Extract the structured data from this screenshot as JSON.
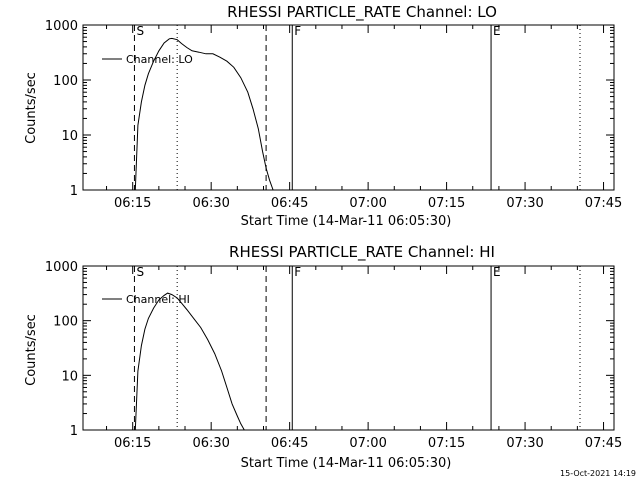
{
  "footer": {
    "timestamp": "15-Oct-2021 14:19"
  },
  "chart_data": [
    {
      "type": "line",
      "title": "RHESSI PARTICLE_RATE Channel: LO",
      "xlabel": "Start Time (14-Mar-11 06:05:30)",
      "ylabel": "Counts/sec",
      "yscale": "log",
      "xlim": [
        "06:05:30",
        "07:47:00"
      ],
      "ylim": [
        1,
        1000
      ],
      "x_ticks": [
        "06:15",
        "06:30",
        "06:45",
        "07:00",
        "07:15",
        "07:30",
        "07:45"
      ],
      "y_ticks": [
        "1",
        "10",
        "100",
        "1000"
      ],
      "grid": false,
      "legend": {
        "placement": "top-left",
        "entries": [
          "Channel: LO"
        ]
      },
      "markers": [
        {
          "label": "S",
          "time": "06:15:20",
          "style": "dashed"
        },
        {
          "label": "",
          "time": "06:23:30",
          "style": "dotted"
        },
        {
          "label": "",
          "time": "06:40:30",
          "style": "dashed"
        },
        {
          "label": "F",
          "time": "06:45:30",
          "style": "solid"
        },
        {
          "label": "E",
          "time": "07:23:30",
          "style": "solid"
        },
        {
          "label": "",
          "time": "07:40:30",
          "style": "dotted"
        }
      ],
      "series": [
        {
          "x": [
            "06:15:30",
            "06:16:00",
            "06:16:40",
            "06:17:20",
            "06:18:00",
            "06:19:00",
            "06:20:00",
            "06:21:00",
            "06:22:00",
            "06:22:30",
            "06:23:30",
            "06:24:20",
            "06:25:20",
            "06:26:20",
            "06:27:40",
            "06:29:00",
            "06:30:20",
            "06:31:40",
            "06:33:00",
            "06:34:20",
            "06:35:40",
            "06:37:00",
            "06:38:00",
            "06:39:00",
            "06:39:50",
            "06:40:30",
            "06:41:10",
            "06:41:50"
          ],
          "values": [
            1,
            15,
            40,
            80,
            130,
            220,
            340,
            470,
            560,
            570,
            540,
            460,
            390,
            340,
            320,
            300,
            300,
            260,
            220,
            170,
            110,
            60,
            30,
            13,
            5,
            2.5,
            1.5,
            1
          ]
        }
      ]
    },
    {
      "type": "line",
      "title": "RHESSI PARTICLE_RATE Channel: HI",
      "xlabel": "Start Time (14-Mar-11 06:05:30)",
      "ylabel": "Counts/sec",
      "yscale": "log",
      "xlim": [
        "06:05:30",
        "07:47:00"
      ],
      "ylim": [
        1,
        1000
      ],
      "x_ticks": [
        "06:15",
        "06:30",
        "06:45",
        "07:00",
        "07:15",
        "07:30",
        "07:45"
      ],
      "y_ticks": [
        "1",
        "10",
        "100",
        "1000"
      ],
      "grid": false,
      "legend": {
        "placement": "top-left",
        "entries": [
          "Channel: HI"
        ]
      },
      "markers": [
        {
          "label": "S",
          "time": "06:15:20",
          "style": "dashed"
        },
        {
          "label": "",
          "time": "06:23:30",
          "style": "dotted"
        },
        {
          "label": "",
          "time": "06:40:30",
          "style": "dashed"
        },
        {
          "label": "F",
          "time": "06:45:30",
          "style": "solid"
        },
        {
          "label": "E",
          "time": "07:23:30",
          "style": "solid"
        },
        {
          "label": "",
          "time": "07:40:30",
          "style": "dotted"
        }
      ],
      "series": [
        {
          "x": [
            "06:15:30",
            "06:16:00",
            "06:16:40",
            "06:17:20",
            "06:18:00",
            "06:19:00",
            "06:20:00",
            "06:21:00",
            "06:21:40",
            "06:22:30",
            "06:23:30",
            "06:24:20",
            "06:25:20",
            "06:26:40",
            "06:28:00",
            "06:29:20",
            "06:30:40",
            "06:32:00",
            "06:33:00",
            "06:34:00",
            "06:35:00",
            "06:35:40",
            "06:36:20"
          ],
          "values": [
            1,
            12,
            35,
            70,
            110,
            170,
            240,
            290,
            320,
            300,
            260,
            210,
            160,
            110,
            75,
            45,
            25,
            12,
            6,
            3,
            1.8,
            1.3,
            1
          ]
        }
      ]
    }
  ]
}
